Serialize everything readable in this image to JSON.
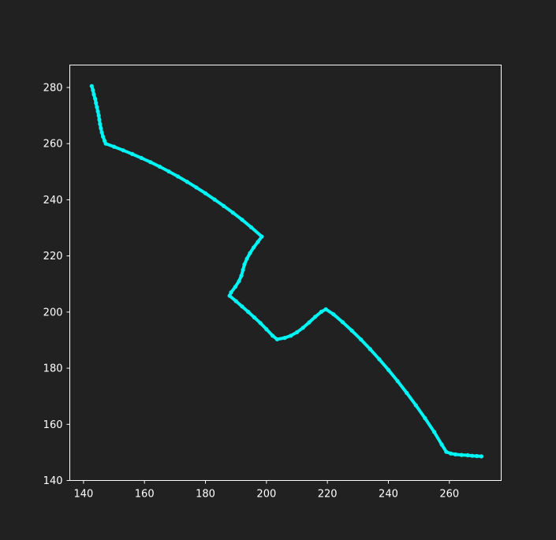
{
  "chart_data": {
    "type": "scatter",
    "title": "",
    "xlabel": "",
    "ylabel": "",
    "xlim": [
      135.5,
      277
    ],
    "ylim": [
      140,
      288
    ],
    "x_ticks": [
      140,
      160,
      180,
      200,
      220,
      240,
      260
    ],
    "y_ticks": [
      140,
      160,
      180,
      200,
      220,
      240,
      260,
      280
    ],
    "grid": false,
    "legend": "none",
    "colors": {
      "background": "#212121",
      "axes": "#ffffff",
      "series": "#00f5f5"
    },
    "series": [
      {
        "points": [
          [
            142.7,
            280.5
          ],
          [
            143.1,
            279
          ],
          [
            143.4,
            277.5
          ],
          [
            143.8,
            276
          ],
          [
            144.1,
            274.5
          ],
          [
            144.4,
            273
          ],
          [
            144.7,
            271.5
          ],
          [
            145.0,
            270
          ],
          [
            145.2,
            268.5
          ],
          [
            145.4,
            267
          ],
          [
            145.7,
            265.5
          ],
          [
            146.0,
            264
          ],
          [
            146.4,
            262.5
          ],
          [
            146.9,
            261
          ],
          [
            147.3,
            260
          ],
          [
            150,
            258.9
          ],
          [
            153,
            257.6
          ],
          [
            156,
            256.3
          ],
          [
            159,
            254.9
          ],
          [
            162,
            253.4
          ],
          [
            165,
            251.8
          ],
          [
            168,
            250.1
          ],
          [
            171,
            248.3
          ],
          [
            174,
            246.4
          ],
          [
            177,
            244.4
          ],
          [
            180,
            242.3
          ],
          [
            183,
            240.1
          ],
          [
            186,
            237.8
          ],
          [
            189,
            235.4
          ],
          [
            192,
            232.9
          ],
          [
            195,
            230.2
          ],
          [
            198.5,
            226.9
          ],
          [
            197.2,
            225
          ],
          [
            195.8,
            223
          ],
          [
            194.6,
            221
          ],
          [
            193.6,
            219
          ],
          [
            192.8,
            217
          ],
          [
            192.3,
            215
          ],
          [
            191.8,
            213
          ],
          [
            191,
            211
          ],
          [
            189.8,
            209
          ],
          [
            188.4,
            207
          ],
          [
            187.9,
            205.8
          ],
          [
            190,
            203.9
          ],
          [
            192,
            202
          ],
          [
            194,
            200.1
          ],
          [
            196,
            198.1
          ],
          [
            198,
            196.1
          ],
          [
            200,
            193.9
          ],
          [
            202,
            191.6
          ],
          [
            203.5,
            190.3
          ],
          [
            206,
            190.8
          ],
          [
            208,
            191.6
          ],
          [
            210,
            192.8
          ],
          [
            212,
            194.4
          ],
          [
            214,
            196.3
          ],
          [
            216,
            198.3
          ],
          [
            218,
            200.1
          ],
          [
            219.5,
            201
          ],
          [
            222,
            199.2
          ],
          [
            225,
            196.4
          ],
          [
            228,
            193.4
          ],
          [
            231,
            190.2
          ],
          [
            234,
            186.8
          ],
          [
            237,
            183.2
          ],
          [
            240,
            179.4
          ],
          [
            243,
            175.4
          ],
          [
            246,
            171.2
          ],
          [
            249,
            166.8
          ],
          [
            252,
            162.2
          ],
          [
            255,
            157.3
          ],
          [
            257.5,
            152.8
          ],
          [
            259,
            150.2
          ],
          [
            260.5,
            149.6
          ],
          [
            262,
            149.3
          ],
          [
            264,
            149.1
          ],
          [
            266,
            149
          ],
          [
            267.5,
            148.8
          ],
          [
            269,
            148.7
          ],
          [
            270.5,
            148.6
          ]
        ]
      }
    ]
  }
}
